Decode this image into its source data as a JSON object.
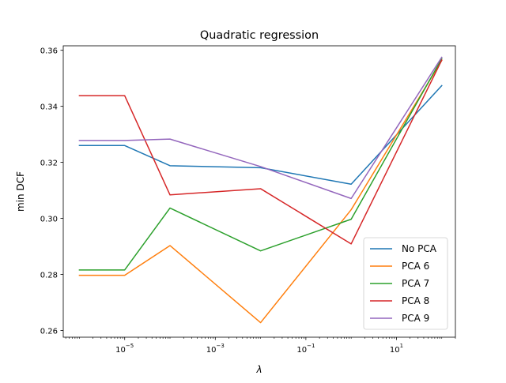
{
  "chart_data": {
    "type": "line",
    "title": "Quadratic regression",
    "xlabel": "λ",
    "ylabel": "min DCF",
    "xscale": "log",
    "x": [
      1e-06,
      1e-05,
      0.0001,
      0.01,
      1,
      100
    ],
    "xlim": [
      4.4e-07,
      200
    ],
    "ylim": [
      0.2576,
      0.3616
    ],
    "x_ticks": [
      {
        "value": 1e-05,
        "base": "10",
        "exp": "−5"
      },
      {
        "value": 0.001,
        "base": "10",
        "exp": "−3"
      },
      {
        "value": 0.1,
        "base": "10",
        "exp": "−1"
      },
      {
        "value": 10,
        "base": "10",
        "exp": "1"
      }
    ],
    "y_ticks": [
      {
        "value": 0.26,
        "label": "0.26"
      },
      {
        "value": 0.28,
        "label": "0.28"
      },
      {
        "value": 0.3,
        "label": "0.30"
      },
      {
        "value": 0.32,
        "label": "0.32"
      },
      {
        "value": 0.34,
        "label": "0.34"
      },
      {
        "value": 0.36,
        "label": "0.36"
      }
    ],
    "grid": false,
    "legend_position": "lower-right",
    "series": [
      {
        "name": "No PCA",
        "color": "#1f77b4",
        "values": [
          0.326,
          0.326,
          0.3188,
          0.3181,
          0.3122,
          0.3474
        ]
      },
      {
        "name": "PCA 6",
        "color": "#ff7f0e",
        "values": [
          0.2797,
          0.2797,
          0.2903,
          0.2628,
          0.3031,
          0.3564
        ]
      },
      {
        "name": "PCA 7",
        "color": "#2ca02c",
        "values": [
          0.2816,
          0.2816,
          0.3037,
          0.2884,
          0.2997,
          0.357
        ]
      },
      {
        "name": "PCA 8",
        "color": "#d62728",
        "values": [
          0.3438,
          0.3438,
          0.3084,
          0.3106,
          0.2909,
          0.3565
        ]
      },
      {
        "name": "PCA 9",
        "color": "#9467bd",
        "values": [
          0.3278,
          0.3278,
          0.3283,
          0.3185,
          0.3071,
          0.3575
        ]
      }
    ]
  }
}
